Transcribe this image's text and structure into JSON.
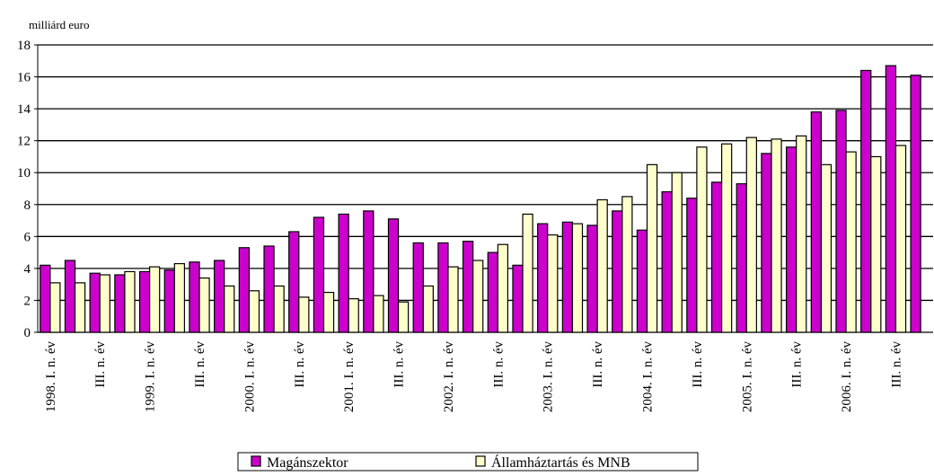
{
  "chart_data": {
    "type": "bar",
    "subtitle": "milliárd euro",
    "categories": [
      "1998. I. n. év",
      null,
      "III. n. év",
      null,
      "1999. I. n. év",
      null,
      "III. n. év",
      null,
      "2000. I. n. év",
      null,
      "III. n. év",
      null,
      "2001. I. n. év",
      null,
      "III. n. év",
      null,
      "2002. I. n. év",
      null,
      "III. n. év",
      null,
      "2003. I. n. év",
      null,
      "III. n. év",
      null,
      "2004. I. n. év",
      null,
      "III. n. év",
      null,
      "2005. I. n. év",
      null,
      "III. n. év",
      null,
      "2006. I. n. év",
      null,
      "III. n. év",
      null
    ],
    "series": [
      {
        "name": "Magánszektor",
        "color": "#cc00cc",
        "values": [
          4.2,
          4.5,
          3.7,
          3.6,
          3.8,
          3.9,
          4.4,
          4.5,
          5.3,
          5.4,
          6.3,
          7.2,
          7.4,
          7.6,
          7.1,
          5.6,
          5.6,
          5.7,
          5.0,
          4.2,
          6.8,
          6.9,
          6.7,
          7.6,
          6.4,
          8.8,
          8.4,
          9.4,
          9.3,
          11.2,
          11.6,
          13.8,
          13.9,
          16.4,
          16.7,
          16.1
        ]
      },
      {
        "name": "Államháztartás és MNB",
        "color": "#ffffcc",
        "values": [
          3.1,
          3.1,
          3.6,
          3.8,
          4.1,
          4.3,
          3.4,
          2.9,
          2.6,
          2.9,
          2.2,
          2.5,
          2.1,
          2.3,
          1.9,
          2.9,
          4.1,
          4.5,
          5.5,
          7.4,
          6.1,
          6.8,
          8.3,
          8.5,
          10.5,
          10.0,
          11.6,
          11.8,
          12.2,
          12.1,
          12.3,
          10.5,
          11.3,
          11.0,
          11.7,
          null
        ]
      }
    ],
    "ylim": [
      0,
      18
    ],
    "yticks": [
      0,
      2,
      4,
      6,
      8,
      10,
      12,
      14,
      16,
      18
    ],
    "grid": true
  }
}
